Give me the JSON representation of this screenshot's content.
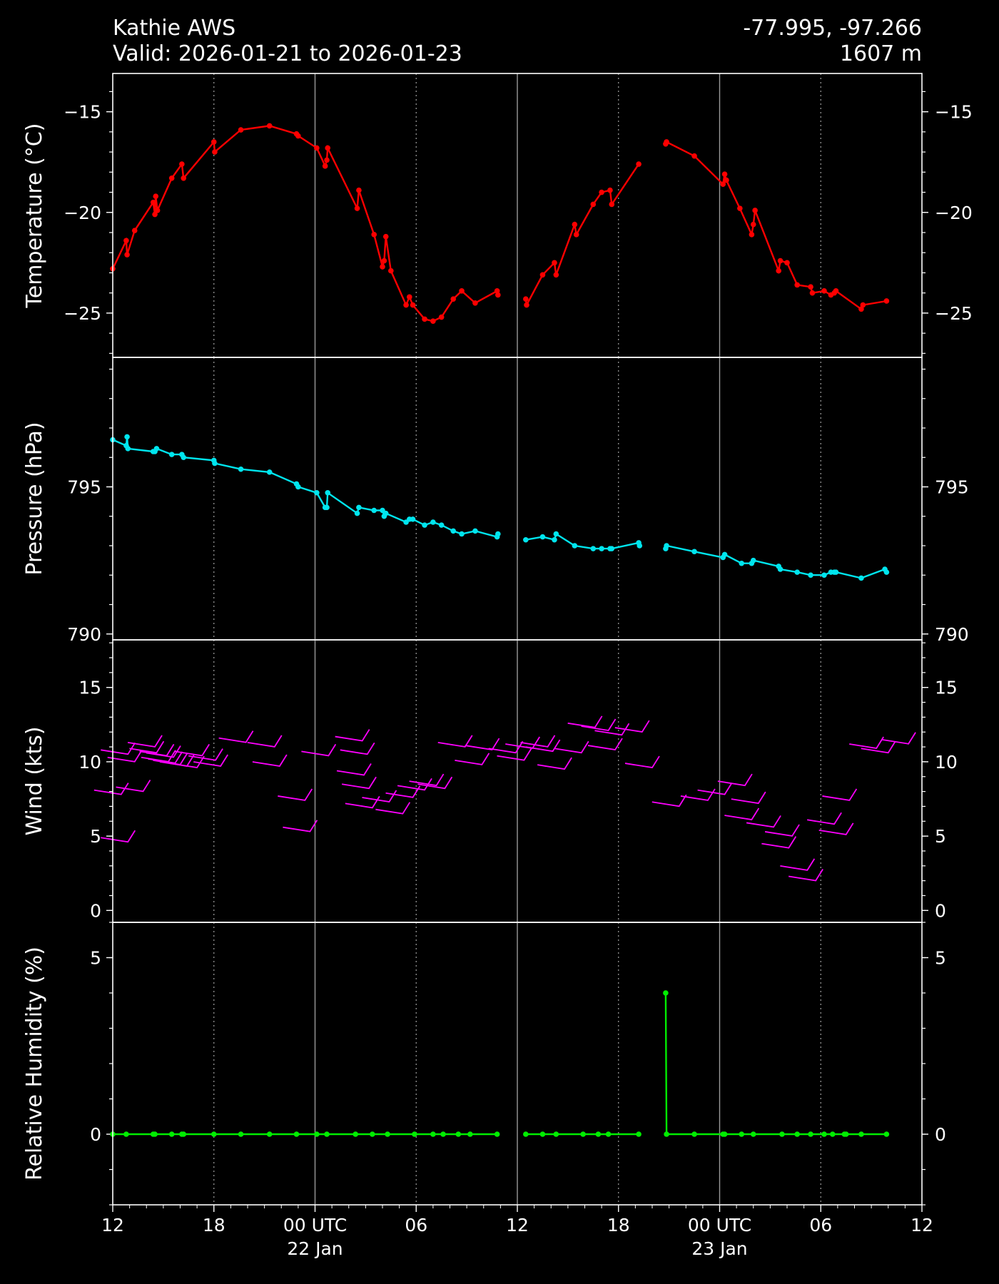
{
  "header": {
    "station": "Kathie AWS",
    "valid": "Valid: 2026-01-21 to 2026-01-23",
    "coords": "-77.995, -97.266",
    "elevation": "1607 m"
  },
  "colors": {
    "background": "#000000",
    "foreground": "#ffffff",
    "temperature": "#ff0000",
    "pressure": "#00e5ee",
    "wind": "#ff00ff",
    "humidity": "#00ee00"
  },
  "chart_data": [
    {
      "type": "line",
      "ylabel": "Temperature ($^\\circ$C)",
      "xlim": [
        0,
        48
      ],
      "ylim": [
        -27.2,
        -13.1
      ],
      "yticks": [
        -15,
        -20,
        -25
      ],
      "ytick_labels": [
        "−15",
        "−20",
        "−25"
      ],
      "yminor": 1,
      "series": [
        {
          "x": [
            0,
            0.8,
            0.85,
            1.3,
            2.4,
            2.5,
            2.55,
            2.65,
            3.5,
            4.1,
            4.2,
            6.0,
            6.05,
            7.6,
            9.3,
            10.9,
            11.0,
            12.1,
            12.6,
            12.7,
            12.75,
            14.5,
            14.6,
            15.5,
            16.0,
            16.1,
            16.2,
            16.5,
            17.4,
            17.6,
            17.8,
            18.5,
            19.0,
            19.5,
            20.2,
            20.7,
            21.5,
            22.8,
            22.85
          ],
          "y": [
            -22.8,
            -21.4,
            -22.1,
            -20.9,
            -19.5,
            -20.1,
            -19.2,
            -19.9,
            -18.3,
            -17.6,
            -18.3,
            -16.5,
            -17.0,
            -15.9,
            -15.7,
            -16.1,
            -16.2,
            -16.8,
            -17.7,
            -17.4,
            -16.8,
            -19.8,
            -18.9,
            -21.1,
            -22.7,
            -22.4,
            -21.2,
            -22.9,
            -24.6,
            -24.2,
            -24.6,
            -25.3,
            -25.4,
            -25.2,
            -24.3,
            -23.9,
            -24.5,
            -23.9,
            -24.1
          ]
        },
        {
          "x": [
            24.5,
            24.55,
            25.5,
            26.2,
            26.3,
            27.4,
            27.5,
            28.5,
            29.0,
            29.5,
            29.6,
            31.2
          ],
          "y": [
            -24.3,
            -24.6,
            -23.1,
            -22.5,
            -23.1,
            -20.6,
            -21.1,
            -19.6,
            -19.0,
            -18.9,
            -19.6,
            -17.6
          ]
        },
        {
          "x": [
            32.8,
            32.85,
            34.5,
            36.2,
            36.3,
            36.4,
            37.2,
            37.9,
            38.0,
            38.1,
            39.5,
            39.6,
            40.0,
            40.6,
            41.4,
            41.5,
            42.2,
            42.6,
            42.8,
            42.9,
            44.4,
            44.5,
            45.9
          ],
          "y": [
            -16.6,
            -16.5,
            -17.2,
            -18.6,
            -18.1,
            -18.4,
            -19.8,
            -21.1,
            -20.6,
            -19.9,
            -22.9,
            -22.4,
            -22.5,
            -23.6,
            -23.7,
            -24.0,
            -23.9,
            -24.1,
            -24.0,
            -23.9,
            -24.8,
            -24.6,
            -24.4
          ]
        }
      ]
    },
    {
      "type": "line",
      "ylabel": "Pressure (hPa)",
      "xlim": [
        0,
        48
      ],
      "ylim": [
        789.8,
        799.4
      ],
      "yticks": [
        795,
        790
      ],
      "ytick_labels": [
        "795",
        "790"
      ],
      "yminor": 1,
      "series": [
        {
          "x": [
            0,
            0.8,
            0.85,
            0.9,
            2.4,
            2.5,
            2.6,
            3.5,
            4.1,
            4.2,
            6.0,
            6.05,
            7.6,
            9.3,
            10.9,
            11.0,
            12.1,
            12.6,
            12.7,
            12.75,
            14.5,
            14.6,
            15.5,
            16.0,
            16.1,
            16.2,
            17.4,
            17.6,
            17.8,
            18.5,
            19.0,
            19.5,
            20.2,
            20.7,
            21.5,
            22.8,
            22.85
          ],
          "y": [
            796.6,
            796.4,
            796.7,
            796.3,
            796.2,
            796.2,
            796.3,
            796.1,
            796.1,
            796.0,
            795.9,
            795.8,
            795.6,
            795.5,
            795.1,
            795.0,
            794.8,
            794.3,
            794.3,
            794.8,
            794.1,
            794.3,
            794.2,
            794.2,
            794.0,
            794.1,
            793.8,
            793.9,
            793.9,
            793.7,
            793.8,
            793.7,
            793.5,
            793.4,
            793.5,
            793.3,
            793.4
          ]
        },
        {
          "x": [
            24.5,
            25.5,
            26.2,
            26.3,
            27.4,
            28.5,
            29.0,
            29.5,
            29.6,
            31.2,
            31.25
          ],
          "y": [
            793.2,
            793.3,
            793.2,
            793.4,
            793.0,
            792.9,
            792.9,
            792.9,
            792.9,
            793.1,
            793.0
          ]
        },
        {
          "x": [
            32.8,
            32.85,
            34.5,
            36.2,
            36.3,
            37.3,
            37.9,
            38.0,
            39.5,
            39.6,
            40.6,
            41.4,
            42.2,
            42.6,
            42.8,
            42.9,
            44.4,
            45.8,
            45.9
          ],
          "y": [
            792.9,
            793.0,
            792.8,
            792.6,
            792.7,
            792.4,
            792.4,
            792.5,
            792.3,
            792.2,
            792.1,
            792.0,
            792.0,
            792.1,
            792.1,
            792.1,
            791.9,
            792.2,
            792.1
          ]
        }
      ]
    },
    {
      "type": "scatter",
      "ylabel": "Wind (kts)",
      "xlim": [
        0,
        48
      ],
      "ylim": [
        -0.8,
        18.2
      ],
      "yticks": [
        15,
        10,
        5,
        0
      ],
      "ytick_labels": [
        "15",
        "10",
        "5",
        "0"
      ],
      "yminor": 1,
      "note": "wind barbs; x = hours from 12 UTC 21 Jan, y = speed (kts)",
      "points": [
        [
          0.5,
          8.0
        ],
        [
          0.9,
          4.8
        ],
        [
          1.8,
          8.2
        ],
        [
          0.9,
          10.7
        ],
        [
          1.3,
          10.2
        ],
        [
          2.5,
          11.2
        ],
        [
          2.6,
          10.8
        ],
        [
          3.2,
          10.6
        ],
        [
          3.3,
          10.2
        ],
        [
          3.6,
          10.5
        ],
        [
          3.7,
          10.1
        ],
        [
          4.0,
          10.0
        ],
        [
          4.4,
          9.9
        ],
        [
          5.0,
          9.8
        ],
        [
          5.3,
          10.6
        ],
        [
          6.1,
          10.3
        ],
        [
          6.4,
          9.9
        ],
        [
          7.9,
          11.5
        ],
        [
          9.6,
          11.2
        ],
        [
          9.9,
          9.9
        ],
        [
          11.4,
          7.6
        ],
        [
          11.7,
          5.5
        ],
        [
          12.8,
          10.6
        ],
        [
          14.8,
          11.6
        ],
        [
          15.1,
          10.7
        ],
        [
          14.9,
          9.3
        ],
        [
          15.2,
          8.4
        ],
        [
          15.4,
          7.1
        ],
        [
          16.4,
          7.5
        ],
        [
          17.2,
          6.7
        ],
        [
          17.8,
          7.8
        ],
        [
          18.5,
          8.3
        ],
        [
          19.2,
          8.6
        ],
        [
          19.7,
          8.4
        ],
        [
          20.9,
          11.2
        ],
        [
          21.9,
          10.0
        ],
        [
          22.5,
          11.0
        ],
        [
          23.9,
          10.8
        ],
        [
          24.4,
          10.3
        ],
        [
          24.9,
          11.1
        ],
        [
          25.8,
          11.2
        ],
        [
          26.1,
          10.9
        ],
        [
          26.8,
          9.7
        ],
        [
          27.8,
          10.8
        ],
        [
          28.6,
          12.5
        ],
        [
          29.4,
          12.3
        ],
        [
          30.2,
          12.0
        ],
        [
          31.4,
          12.2
        ],
        [
          29.8,
          11.0
        ],
        [
          32.0,
          9.8
        ],
        [
          33.6,
          7.2
        ],
        [
          35.3,
          7.6
        ],
        [
          36.3,
          8.0
        ],
        [
          37.5,
          8.6
        ],
        [
          38.3,
          7.4
        ],
        [
          37.9,
          6.3
        ],
        [
          39.2,
          5.8
        ],
        [
          40.3,
          5.2
        ],
        [
          40.1,
          4.4
        ],
        [
          41.2,
          2.9
        ],
        [
          41.7,
          2.2
        ],
        [
          42.8,
          6.0
        ],
        [
          43.5,
          5.3
        ],
        [
          43.7,
          7.6
        ],
        [
          45.3,
          11.1
        ],
        [
          46.0,
          10.8
        ],
        [
          47.2,
          11.4
        ]
      ]
    },
    {
      "type": "line",
      "ylabel": "Relative Humidity (%)",
      "xticks": [
        0,
        6,
        12,
        18,
        24,
        30,
        36,
        42,
        48
      ],
      "xtick_labels": [
        "12",
        "18",
        "00 UTC\n22 Jan",
        "06",
        "12",
        "18",
        "00 UTC\n23 Jan",
        "06",
        "12"
      ],
      "xlim": [
        0,
        48
      ],
      "ylim": [
        -2,
        6
      ],
      "yticks": [
        5,
        0
      ],
      "ytick_labels": [
        "5",
        "0"
      ],
      "yminor": 1,
      "series": [
        {
          "x": [
            0,
            0.8,
            2.4,
            2.5,
            3.5,
            4.1,
            4.2,
            6.0,
            7.6,
            9.3,
            10.9,
            12.1,
            12.7,
            14.4,
            15.4,
            16.3,
            17.9,
            19.0,
            19.6,
            20.5,
            21.2,
            22.8
          ],
          "y": [
            0,
            0,
            0,
            0,
            0,
            0,
            0,
            0,
            0,
            0,
            0,
            0,
            0,
            0,
            0,
            0,
            0,
            0,
            0,
            0,
            0,
            0
          ]
        },
        {
          "x": [
            24.5,
            25.5,
            26.3,
            27.9,
            28.8,
            29.4,
            31.2
          ],
          "y": [
            0,
            0,
            0,
            0,
            0,
            0,
            0
          ]
        },
        {
          "x": [
            32.8,
            32.85,
            34.5,
            36.2,
            36.3,
            37.3,
            38.0,
            39.7,
            40.6,
            41.4,
            42.2,
            42.7,
            43.4,
            43.5,
            44.4,
            45.9
          ],
          "y": [
            4.0,
            0,
            0,
            0,
            0,
            0,
            0,
            0,
            0,
            0,
            0,
            0,
            0,
            0,
            0,
            0
          ]
        }
      ]
    }
  ]
}
